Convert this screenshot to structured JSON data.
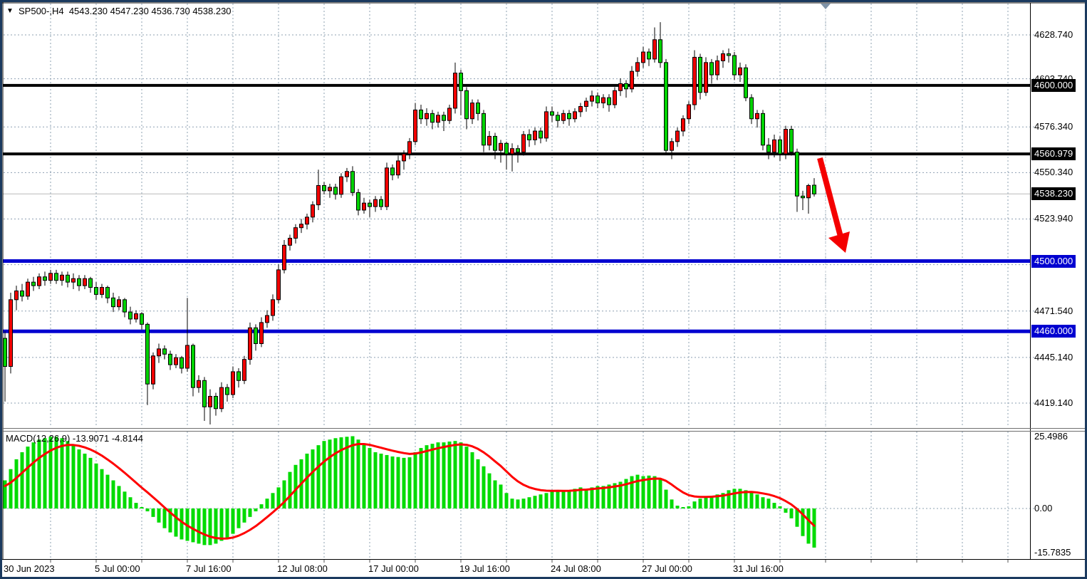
{
  "header": {
    "marker": "▼",
    "title": "SP500-,H4  4543.230 4547.230 4536.730 4538.230",
    "symbol": "SP500-",
    "timeframe": "H4",
    "ohlc": {
      "open": "4543.230",
      "high": "4547.230",
      "low": "4536.730",
      "close": "4538.230"
    }
  },
  "price_axis": {
    "plain_labels": [
      {
        "text": "4628.740",
        "price": 4628.74
      },
      {
        "text": "4603.740",
        "price": 4603.74
      },
      {
        "text": "4576.340",
        "price": 4576.34
      },
      {
        "text": "4550.340",
        "price": 4550.34
      },
      {
        "text": "4523.940",
        "price": 4523.94
      },
      {
        "text": "4471.540",
        "price": 4471.54
      },
      {
        "text": "4445.140",
        "price": 4445.14
      },
      {
        "text": "4419.140",
        "price": 4419.14
      }
    ],
    "boxed_labels": [
      {
        "text": "4600.000",
        "price": 4600.0,
        "bg": "#000000"
      },
      {
        "text": "4560.979",
        "price": 4560.979,
        "bg": "#000000"
      },
      {
        "text": "4538.230",
        "price": 4538.23,
        "bg": "#000000"
      },
      {
        "text": "4500.000",
        "price": 4500.0,
        "bg": "#0000d0"
      },
      {
        "text": "4460.000",
        "price": 4460.0,
        "bg": "#0000d0"
      }
    ]
  },
  "time_axis": {
    "labels": [
      {
        "text": "30 Jun 2023",
        "bar": 0
      },
      {
        "text": "5 Jul 00:00",
        "bar": 16
      },
      {
        "text": "7 Jul 16:00",
        "bar": 32
      },
      {
        "text": "12 Jul 08:00",
        "bar": 48
      },
      {
        "text": "17 Jul 00:00",
        "bar": 64
      },
      {
        "text": "19 Jul 16:00",
        "bar": 80
      },
      {
        "text": "24 Jul 08:00",
        "bar": 96
      },
      {
        "text": "27 Jul 00:00",
        "bar": 112
      },
      {
        "text": "31 Jul 16:00",
        "bar": 128
      }
    ]
  },
  "macd": {
    "label": "MACD(12,26,9) -13.9071 -4.8144",
    "name": "MACD(12,26,9)",
    "main_value": "-13.9071",
    "signal_value": "-4.8144",
    "ticks": [
      {
        "text": "25.4986",
        "value": 25.4986
      },
      {
        "text": "0.00",
        "value": 0
      },
      {
        "text": "-15.7835",
        "value": -15.7835
      }
    ]
  },
  "colors": {
    "bull": "#f20000",
    "bear": "#00d300",
    "candle_outline": "#000000",
    "histogram": "#00db00",
    "signal": "#ff0000",
    "grid": "#8ea0b2",
    "frame": "#1b3a5f",
    "black_line": "#000000",
    "blue_line": "#0000d0",
    "current_price_line": "#b9b9b9",
    "arrow": "#f40000",
    "shift_marker": "#7f93a8"
  },
  "grid": {
    "h_prices": [
      4628.74,
      4603.74,
      4576.34,
      4550.34,
      4523.94,
      4497.94,
      4471.54,
      4445.14,
      4419.14
    ],
    "v_every_bars": 8
  },
  "chart_data": {
    "type": "candlestick",
    "symbol": "SP500-",
    "timeframe": "H4",
    "bars": 143,
    "price_range_visible": [
      4404,
      4647
    ],
    "last_ohlc": {
      "open": 4543.23,
      "high": 4547.23,
      "low": 4536.73,
      "close": 4538.23
    },
    "horizontal_lines": [
      {
        "price": 4600.0,
        "color": "#000000",
        "width": 4
      },
      {
        "price": 4560.979,
        "color": "#000000",
        "width": 4
      },
      {
        "price": 4500.0,
        "color": "#0000d0",
        "width": 5
      },
      {
        "price": 4460.0,
        "color": "#0000d0",
        "width": 5
      }
    ],
    "current_price": 4538.23,
    "candles": [
      [
        4456,
        4460,
        4420,
        4440
      ],
      [
        4440,
        4482,
        4436,
        4478
      ],
      [
        4478,
        4486,
        4472,
        4483
      ],
      [
        4483,
        4487,
        4477,
        4480
      ],
      [
        4480,
        4490,
        4478,
        4488
      ],
      [
        4488,
        4491,
        4483,
        4486
      ],
      [
        4486,
        4493,
        4484,
        4491
      ],
      [
        4491,
        4494,
        4486,
        4489
      ],
      [
        4489,
        4495,
        4487,
        4493
      ],
      [
        4493,
        4495,
        4487,
        4489
      ],
      [
        4489,
        4494,
        4486,
        4492
      ],
      [
        4492,
        4494,
        4485,
        4488
      ],
      [
        4488,
        4493,
        4484,
        4490
      ],
      [
        4490,
        4492,
        4483,
        4486
      ],
      [
        4486,
        4492,
        4484,
        4490
      ],
      [
        4490,
        4491,
        4482,
        4485
      ],
      [
        4485,
        4488,
        4478,
        4481
      ],
      [
        4481,
        4487,
        4479,
        4485
      ],
      [
        4485,
        4486,
        4476,
        4479
      ],
      [
        4479,
        4482,
        4471,
        4474
      ],
      [
        4474,
        4480,
        4472,
        4478
      ],
      [
        4478,
        4479,
        4468,
        4471
      ],
      [
        4471,
        4474,
        4464,
        4467
      ],
      [
        4467,
        4472,
        4465,
        4470
      ],
      [
        4470,
        4471,
        4461,
        4464
      ],
      [
        4464,
        4465,
        4418,
        4430
      ],
      [
        4430,
        4448,
        4427,
        4446
      ],
      [
        4446,
        4453,
        4442,
        4450
      ],
      [
        4450,
        4452,
        4444,
        4447
      ],
      [
        4447,
        4449,
        4438,
        4441
      ],
      [
        4441,
        4447,
        4439,
        4445
      ],
      [
        4445,
        4446,
        4436,
        4439
      ],
      [
        4439,
        4479,
        4437,
        4452
      ],
      [
        4452,
        4453,
        4423,
        4428
      ],
      [
        4428,
        4435,
        4425,
        4432
      ],
      [
        4432,
        4434,
        4409,
        4417
      ],
      [
        4417,
        4427,
        4407,
        4423
      ],
      [
        4423,
        4425,
        4412,
        4416
      ],
      [
        4416,
        4431,
        4414,
        4428
      ],
      [
        4428,
        4430,
        4420,
        4424
      ],
      [
        4424,
        4440,
        4422,
        4437
      ],
      [
        4437,
        4439,
        4428,
        4432
      ],
      [
        4432,
        4446,
        4430,
        4444
      ],
      [
        4444,
        4465,
        4441,
        4462
      ],
      [
        4462,
        4464,
        4449,
        4453
      ],
      [
        4453,
        4468,
        4451,
        4465
      ],
      [
        4465,
        4472,
        4462,
        4469
      ],
      [
        4469,
        4481,
        4466,
        4478
      ],
      [
        4478,
        4498,
        4476,
        4495
      ],
      [
        4495,
        4512,
        4493,
        4509
      ],
      [
        4509,
        4515,
        4506,
        4513
      ],
      [
        4513,
        4521,
        4510,
        4519
      ],
      [
        4519,
        4524,
        4516,
        4521
      ],
      [
        4521,
        4527,
        4518,
        4525
      ],
      [
        4525,
        4534,
        4522,
        4532
      ],
      [
        4532,
        4552,
        4529,
        4543
      ],
      [
        4543,
        4545,
        4538,
        4540
      ],
      [
        4540,
        4544,
        4536,
        4542
      ],
      [
        4542,
        4544,
        4535,
        4538
      ],
      [
        4538,
        4550,
        4536,
        4548
      ],
      [
        4548,
        4553,
        4545,
        4551
      ],
      [
        4551,
        4554,
        4537,
        4539
      ],
      [
        4539,
        4541,
        4526,
        4529
      ],
      [
        4529,
        4536,
        4527,
        4533
      ],
      [
        4533,
        4535,
        4525,
        4531
      ],
      [
        4531,
        4537,
        4528,
        4535
      ],
      [
        4535,
        4537,
        4529,
        4531
      ],
      [
        4531,
        4556,
        4529,
        4553
      ],
      [
        4553,
        4555,
        4546,
        4549
      ],
      [
        4549,
        4560,
        4547,
        4557
      ],
      [
        4557,
        4563,
        4552,
        4561
      ],
      [
        4561,
        4570,
        4558,
        4568
      ],
      [
        4568,
        4590,
        4566,
        4586
      ],
      [
        4586,
        4589,
        4578,
        4581
      ],
      [
        4581,
        4587,
        4577,
        4584
      ],
      [
        4584,
        4586,
        4575,
        4579
      ],
      [
        4579,
        4585,
        4576,
        4583
      ],
      [
        4583,
        4585,
        4574,
        4580
      ],
      [
        4580,
        4589,
        4578,
        4587
      ],
      [
        4587,
        4613,
        4584,
        4607
      ],
      [
        4607,
        4609,
        4583,
        4597
      ],
      [
        4597,
        4599,
        4575,
        4581
      ],
      [
        4581,
        4592,
        4578,
        4590
      ],
      [
        4590,
        4592,
        4580,
        4584
      ],
      [
        4584,
        4586,
        4562,
        4566
      ],
      [
        4566,
        4574,
        4563,
        4571
      ],
      [
        4571,
        4573,
        4558,
        4563
      ],
      [
        4563,
        4569,
        4556,
        4567
      ],
      [
        4567,
        4568,
        4552,
        4561
      ],
      [
        4561,
        4567,
        4551,
        4564
      ],
      [
        4564,
        4566,
        4556,
        4562
      ],
      [
        4562,
        4574,
        4560,
        4572
      ],
      [
        4572,
        4575,
        4565,
        4569
      ],
      [
        4569,
        4576,
        4566,
        4574
      ],
      [
        4574,
        4576,
        4567,
        4570
      ],
      [
        4570,
        4588,
        4568,
        4585
      ],
      [
        4585,
        4588,
        4579,
        4583
      ],
      [
        4583,
        4585,
        4576,
        4580
      ],
      [
        4580,
        4586,
        4578,
        4584
      ],
      [
        4584,
        4586,
        4577,
        4581
      ],
      [
        4581,
        4587,
        4579,
        4585
      ],
      [
        4585,
        4590,
        4582,
        4588
      ],
      [
        4588,
        4593,
        4585,
        4591
      ],
      [
        4591,
        4597,
        4588,
        4594
      ],
      [
        4594,
        4596,
        4587,
        4590
      ],
      [
        4590,
        4595,
        4587,
        4593
      ],
      [
        4593,
        4595,
        4585,
        4589
      ],
      [
        4589,
        4599,
        4587,
        4597
      ],
      [
        4597,
        4604,
        4594,
        4601
      ],
      [
        4601,
        4603,
        4593,
        4598
      ],
      [
        4598,
        4611,
        4596,
        4608
      ],
      [
        4608,
        4616,
        4605,
        4613
      ],
      [
        4613,
        4622,
        4610,
        4619
      ],
      [
        4619,
        4621,
        4611,
        4615
      ],
      [
        4615,
        4633,
        4613,
        4626
      ],
      [
        4626,
        4636,
        4610,
        4613
      ],
      [
        4613,
        4615,
        4561,
        4563
      ],
      [
        4563,
        4570,
        4558,
        4568
      ],
      [
        4568,
        4576,
        4565,
        4574
      ],
      [
        4574,
        4583,
        4571,
        4581
      ],
      [
        4581,
        4591,
        4578,
        4589
      ],
      [
        4589,
        4620,
        4586,
        4616
      ],
      [
        4616,
        4618,
        4592,
        4596
      ],
      [
        4596,
        4616,
        4594,
        4613
      ],
      [
        4613,
        4615,
        4601,
        4606
      ],
      [
        4606,
        4617,
        4603,
        4614
      ],
      [
        4614,
        4620,
        4610,
        4618
      ],
      [
        4618,
        4621,
        4613,
        4617
      ],
      [
        4617,
        4619,
        4603,
        4606
      ],
      [
        4606,
        4613,
        4602,
        4610
      ],
      [
        4610,
        4612,
        4591,
        4593
      ],
      [
        4593,
        4595,
        4578,
        4581
      ],
      [
        4581,
        4586,
        4576,
        4584
      ],
      [
        4584,
        4586,
        4563,
        4566
      ],
      [
        4566,
        4570,
        4558,
        4562
      ],
      [
        4562,
        4572,
        4559,
        4569
      ],
      [
        4569,
        4571,
        4557,
        4561
      ],
      [
        4561,
        4577,
        4558,
        4575
      ],
      [
        4575,
        4577,
        4560,
        4562
      ],
      [
        4562,
        4564,
        4528,
        4537
      ],
      [
        4537,
        4540,
        4529,
        4536
      ],
      [
        4536,
        4544,
        4527,
        4543
      ],
      [
        4543.2,
        4547.2,
        4536.7,
        4538.2
      ]
    ],
    "macd_histogram": [
      10,
      14,
      17.5,
      20,
      22,
      23.5,
      24.5,
      25,
      25.5,
      25.5,
      25,
      24,
      22.5,
      21,
      19.5,
      18,
      16,
      14,
      12,
      10,
      8,
      6,
      4,
      2,
      0.5,
      -1,
      -3,
      -5,
      -7,
      -8.5,
      -10,
      -11,
      -11.5,
      -12,
      -12.5,
      -13,
      -13,
      -12.5,
      -11.5,
      -10.5,
      -9,
      -7,
      -5,
      -3,
      -1,
      1.5,
      3.5,
      5.5,
      7.5,
      10,
      13,
      15.5,
      17.5,
      19.5,
      21,
      22.5,
      24,
      24.5,
      25,
      25.3,
      25.5,
      25.7,
      24.5,
      23,
      21.5,
      20,
      19.5,
      19,
      18.5,
      18.3,
      18,
      18.2,
      20,
      21.5,
      22.5,
      23,
      23.5,
      23.5,
      23.8,
      24,
      23.5,
      22,
      20,
      17.5,
      15,
      12.5,
      10,
      8.5,
      5.5,
      3.5,
      3.2,
      3.5,
      4,
      4.5,
      5,
      5.5,
      6,
      6.5,
      6,
      6.5,
      7,
      7.5,
      7,
      7.5,
      8,
      8,
      8.5,
      9,
      9.5,
      10.5,
      11.5,
      12,
      11.5,
      11.7,
      11.5,
      10.5,
      6.7,
      3.2,
      1,
      0.5,
      0.8,
      2.5,
      3.5,
      4,
      4.5,
      5,
      5.5,
      6.5,
      7,
      7,
      6.5,
      6,
      5,
      4,
      3.5,
      2,
      0.8,
      -1.5,
      -3.5,
      -6.5,
      -9.8,
      -12.5,
      -13.9
    ],
    "signal_start": 7.5,
    "annotation_arrow": {
      "shaft": [
        [
          1151,
          222
        ],
        [
          1180,
          332
        ]
      ],
      "head": [
        [
          1187,
          355
        ],
        [
          1163,
          334
        ],
        [
          1193,
          325
        ]
      ]
    }
  }
}
